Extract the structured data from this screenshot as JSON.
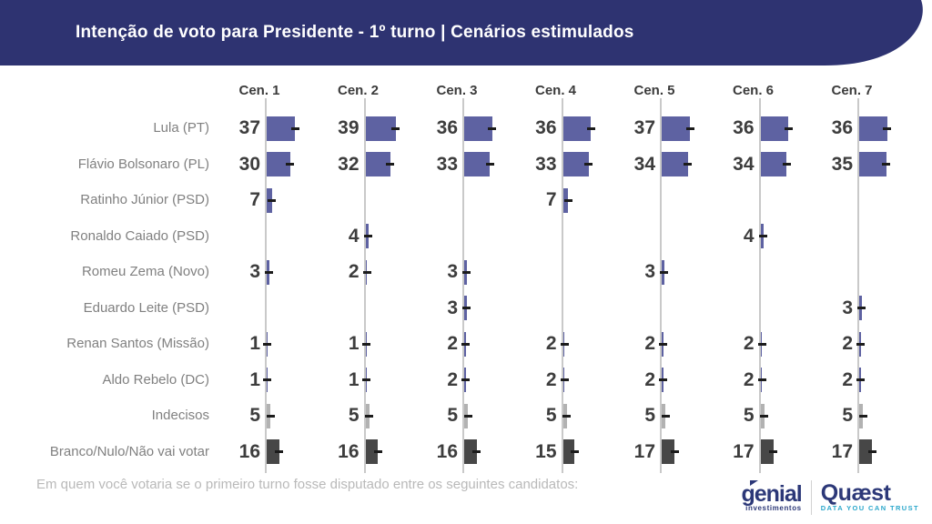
{
  "header": {
    "title": "Intenção de voto para Presidente - 1º turno | Cenários estimulados",
    "bg_color": "#2e3371",
    "text_color": "#ffffff"
  },
  "footer": {
    "question": "Em quem você votaria se o primeiro turno fosse disputado entre os seguintes candidatos:"
  },
  "logos": {
    "genial": {
      "name": "genial",
      "subtitle": "investimentos",
      "color": "#2c3878"
    },
    "quaest": {
      "name": "Quæst",
      "tagline": "DATA YOU CAN TRUST",
      "color": "#2c3878",
      "tagline_color": "#2ba7cb"
    }
  },
  "chart_data": {
    "type": "bar",
    "orientation": "horizontal",
    "title": "Intenção de voto para Presidente - 1º turno | Cenários estimulados",
    "value_unit": "%",
    "legend_position": "none",
    "grid": "vertical-baselines-only",
    "columns": [
      "Cen. 1",
      "Cen. 2",
      "Cen. 3",
      "Cen. 4",
      "Cen. 5",
      "Cen. 6",
      "Cen. 7"
    ],
    "rows": [
      {
        "label": "Lula (PT)",
        "values": [
          37,
          39,
          36,
          36,
          37,
          36,
          36
        ],
        "bar_color": "#5e62a2"
      },
      {
        "label": "Flávio Bolsonaro (PL)",
        "values": [
          30,
          32,
          33,
          33,
          34,
          34,
          35
        ],
        "bar_color": "#5e62a2"
      },
      {
        "label": "Ratinho Júnior (PSD)",
        "values": [
          7,
          null,
          null,
          7,
          null,
          null,
          null
        ],
        "bar_color": "#5e62a2"
      },
      {
        "label": "Ronaldo Caiado (PSD)",
        "values": [
          null,
          4,
          null,
          null,
          null,
          4,
          null
        ],
        "bar_color": "#5e62a2"
      },
      {
        "label": "Romeu Zema (Novo)",
        "values": [
          3,
          2,
          3,
          null,
          3,
          null,
          null
        ],
        "bar_color": "#5e62a2"
      },
      {
        "label": "Eduardo Leite (PSD)",
        "values": [
          null,
          null,
          3,
          null,
          null,
          null,
          3
        ],
        "bar_color": "#5e62a2"
      },
      {
        "label": "Renan Santos (Missão)",
        "values": [
          1,
          1,
          2,
          2,
          2,
          2,
          2
        ],
        "bar_color": "#5e62a2"
      },
      {
        "label": "Aldo Rebelo (DC)",
        "values": [
          1,
          1,
          2,
          2,
          2,
          2,
          2
        ],
        "bar_color": "#5e62a2"
      },
      {
        "label": "Indecisos",
        "values": [
          5,
          5,
          5,
          5,
          5,
          5,
          5
        ],
        "bar_color": "#b2b2b2"
      },
      {
        "label": "Branco/Nulo/Não vai votar",
        "values": [
          16,
          16,
          16,
          15,
          17,
          17,
          17
        ],
        "bar_color": "#474747"
      }
    ],
    "colors": {
      "candidate_bar": "#5e62a2",
      "undecided_bar": "#b2b2b2",
      "blank_null_bar": "#474747",
      "whisker": "#1c1c1c",
      "axis_line": "#c9c9c9",
      "value_text": "#3d3d3d",
      "label_text": "#808080"
    }
  }
}
